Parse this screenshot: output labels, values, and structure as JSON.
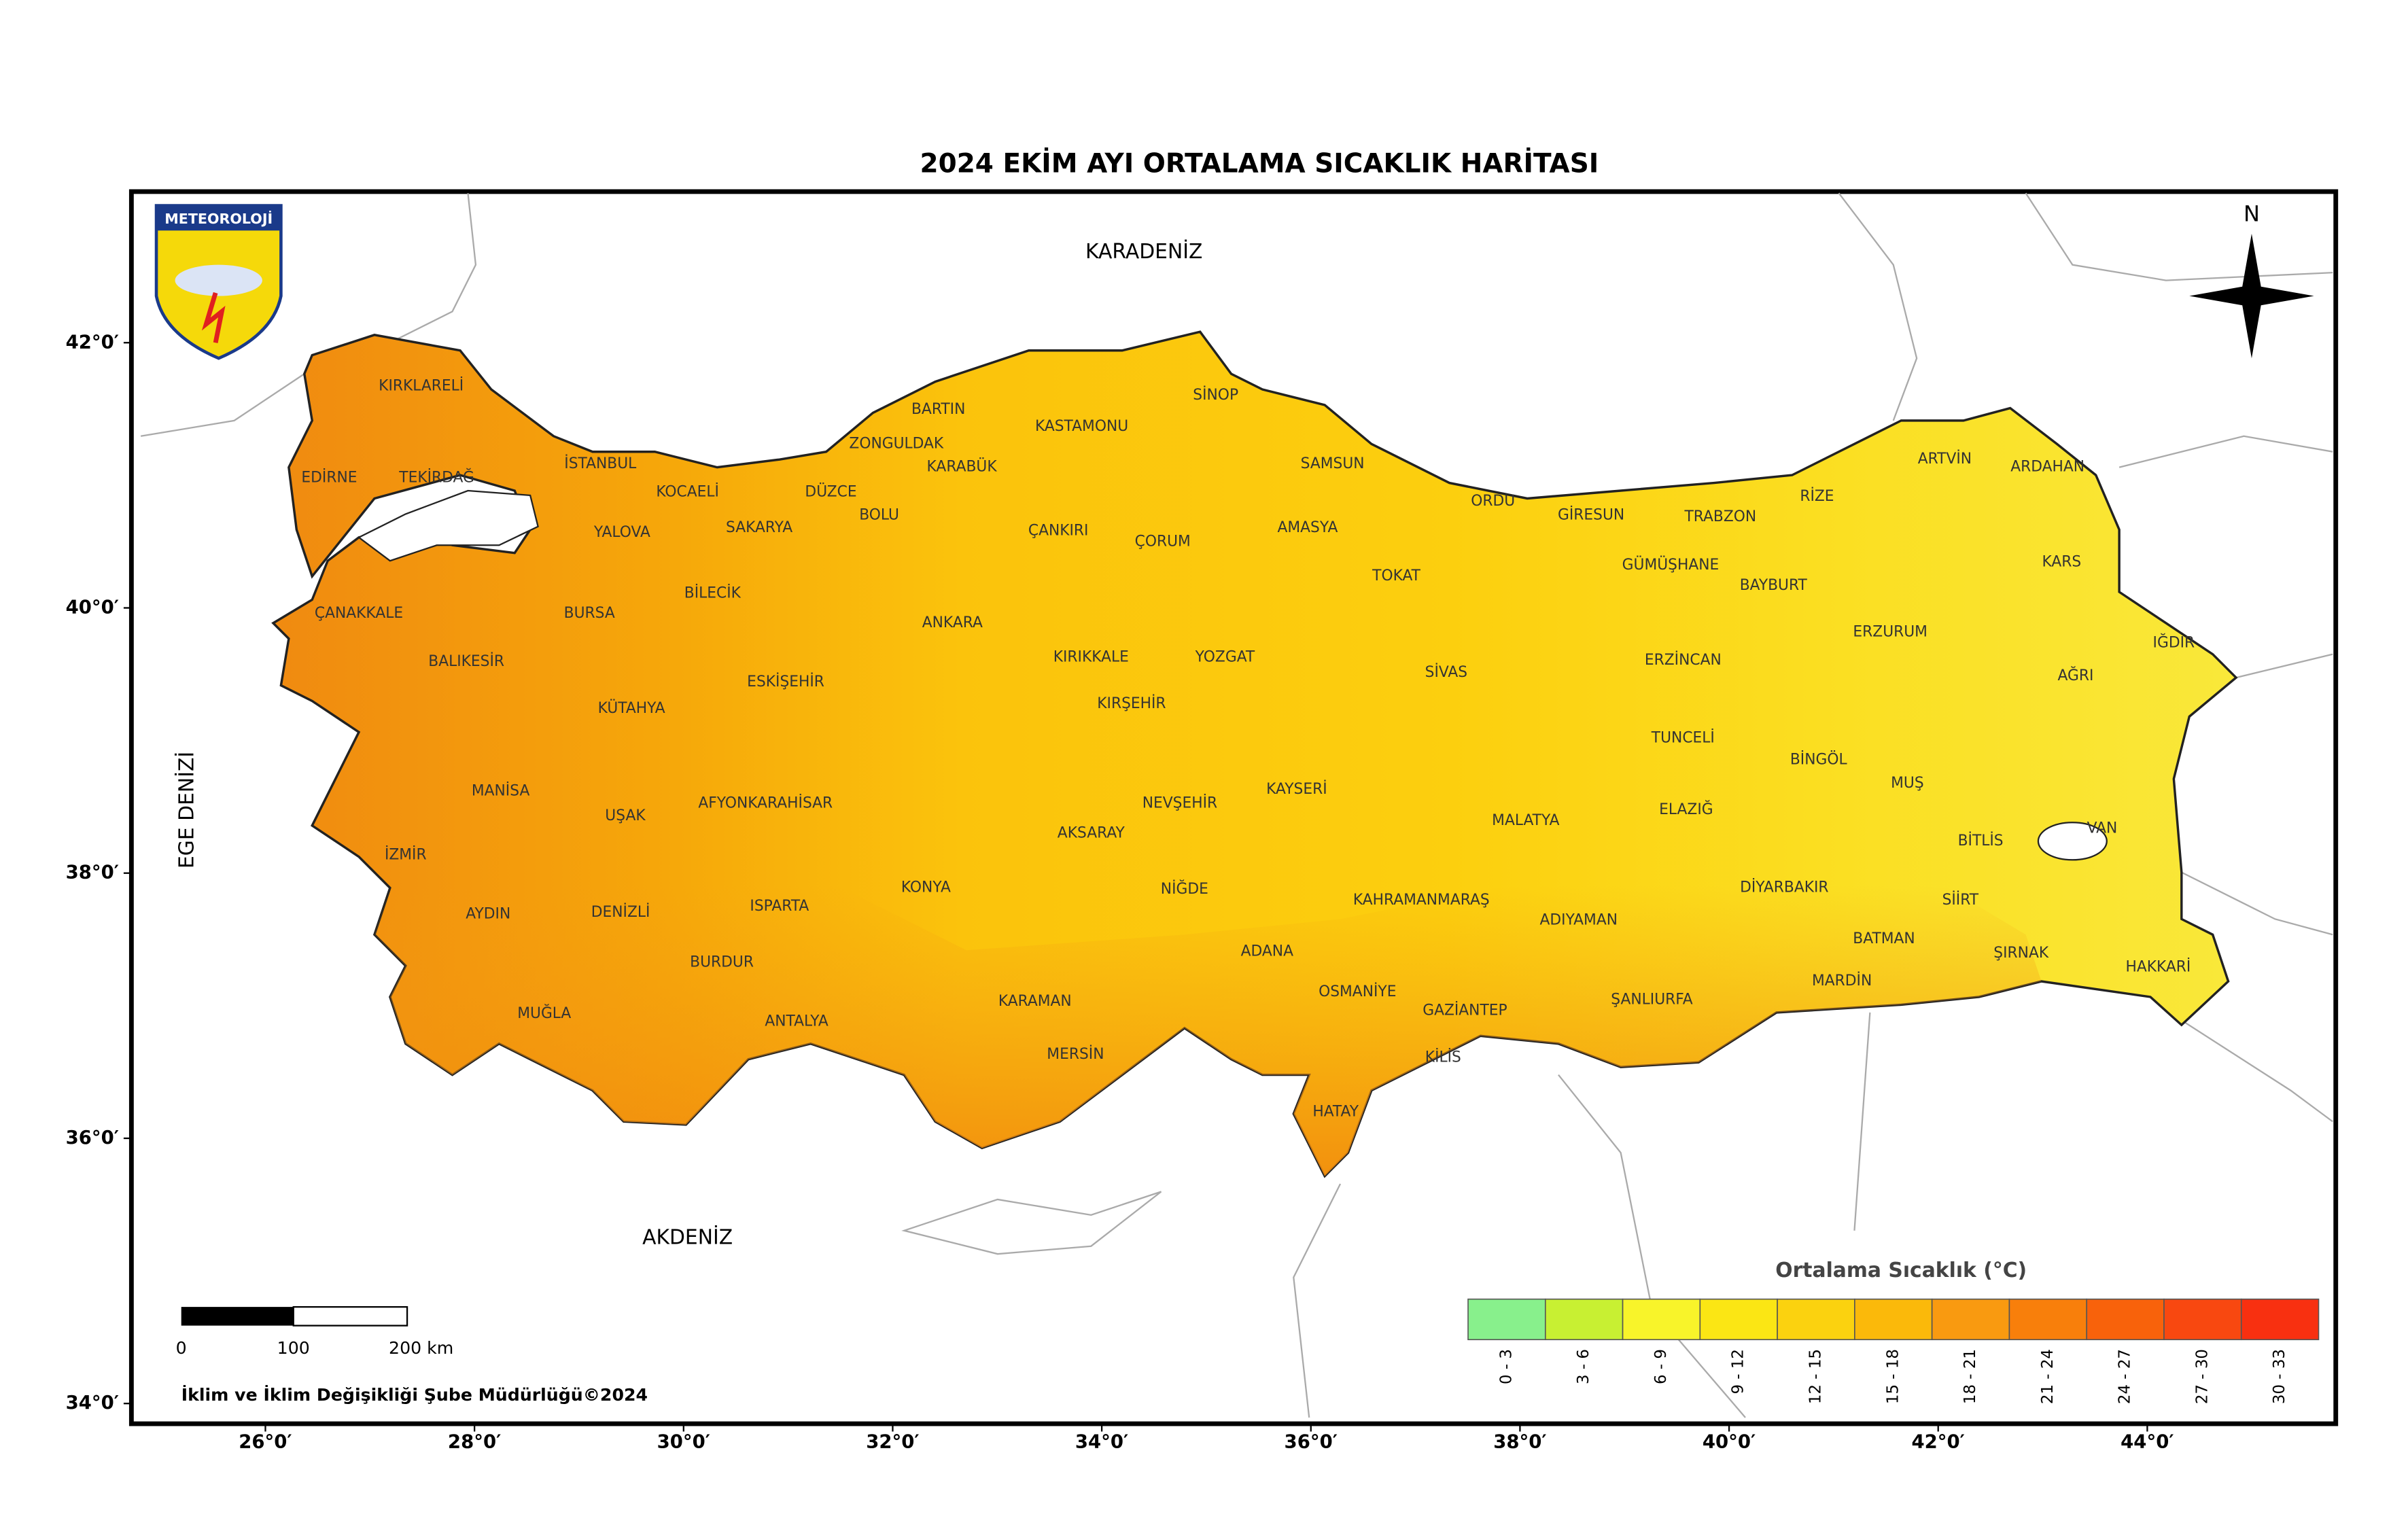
{
  "title": "2024 EKİM AYI ORTALAMA SICAKLIK HARİTASI",
  "logo_text": "METEOROLOJİ",
  "north_label": "N",
  "seas": {
    "black_sea": "KARADENİZ",
    "mediterranean": "AKDENİZ",
    "aegean": "EGE DENİZİ"
  },
  "provinces": [
    "KIRKLARELİ",
    "EDİRNE",
    "TEKİRDAĞ",
    "İSTANBUL",
    "KOCAELİ",
    "DÜZCE",
    "ZONGULDAK",
    "BARTIN",
    "KASTAMONU",
    "SİNOP",
    "KARABÜK",
    "BOLU",
    "SAKARYA",
    "YALOVA",
    "SAMSUN",
    "ORDU",
    "GİRESUN",
    "TRABZON",
    "RİZE",
    "ARTVİN",
    "ARDAHAN",
    "ÇANKIRI",
    "ÇORUM",
    "AMASYA",
    "TOKAT",
    "GÜMÜŞHANE",
    "BAYBURT",
    "KARS",
    "ÇANAKKALE",
    "BİLECİK",
    "BURSA",
    "ANKARA",
    "ERZURUM",
    "IĞDIR",
    "BALIKESİR",
    "ESKİŞEHİR",
    "KIRIKKALE",
    "YOZGAT",
    "SİVAS",
    "ERZİNCAN",
    "AĞRI",
    "KÜTAHYA",
    "KIRŞEHİR",
    "TUNCELİ",
    "BİNGÖL",
    "MUŞ",
    "MANİSA",
    "AFYONKARAHİSAR",
    "UŞAK",
    "NEVŞEHİR",
    "KAYSERİ",
    "MALATYA",
    "ELAZIĞ",
    "BİTLİS",
    "VAN",
    "İZMİR",
    "AKSARAY",
    "KONYA",
    "NİĞDE",
    "KAHRAMANMARAŞ",
    "DİYARBAKIR",
    "SİİRT",
    "AYDIN",
    "DENİZLİ",
    "ISPARTA",
    "ADIYAMAN",
    "ADANA",
    "BATMAN",
    "ŞIRNAK",
    "HAKKARİ",
    "BURDUR",
    "MARDİN",
    "OSMANİYE",
    "ŞANLIURFA",
    "KARAMAN",
    "GAZİANTEP",
    "MUĞLA",
    "ANTALYA",
    "MERSİN",
    "KİLİS",
    "HATAY"
  ],
  "lon_ticks": [
    {
      "value": 26,
      "label": "26°0′"
    },
    {
      "value": 28,
      "label": "28°0′"
    },
    {
      "value": 30,
      "label": "30°0′"
    },
    {
      "value": 32,
      "label": "32°0′"
    },
    {
      "value": 34,
      "label": "34°0′"
    },
    {
      "value": 36,
      "label": "36°0′"
    },
    {
      "value": 38,
      "label": "38°0′"
    },
    {
      "value": 40,
      "label": "40°0′"
    },
    {
      "value": 42,
      "label": "42°0′"
    },
    {
      "value": 44,
      "label": "44°0′"
    }
  ],
  "lat_ticks": [
    {
      "value": 42,
      "label": "42°0′"
    },
    {
      "value": 40,
      "label": "40°0′"
    },
    {
      "value": 38,
      "label": "38°0′"
    },
    {
      "value": 36,
      "label": "36°0′"
    },
    {
      "value": 34,
      "label": "34°0′"
    }
  ],
  "legend": {
    "title": "Ortalama Sıcaklık (°C)",
    "classes": [
      {
        "label": "0 - 3",
        "color": "#88f08c"
      },
      {
        "label": "3 - 6",
        "color": "#c8f032"
      },
      {
        "label": "6 - 9",
        "color": "#f8f42a"
      },
      {
        "label": "9 - 12",
        "color": "#fbe614"
      },
      {
        "label": "12 - 15",
        "color": "#fbd20f"
      },
      {
        "label": "15 - 18",
        "color": "#fbb90a"
      },
      {
        "label": "18 - 21",
        "color": "#f99a10"
      },
      {
        "label": "21 - 24",
        "color": "#f87f0b"
      },
      {
        "label": "24 - 27",
        "color": "#f8620b"
      },
      {
        "label": "27 - 30",
        "color": "#f84810"
      },
      {
        "label": "30 - 33",
        "color": "#f83010"
      }
    ]
  },
  "scale_bar": {
    "labels": [
      "0",
      "100",
      "200 km"
    ]
  },
  "credit": "İklim ve İklim Değişikliği Şube Müdürlüğü©2024"
}
